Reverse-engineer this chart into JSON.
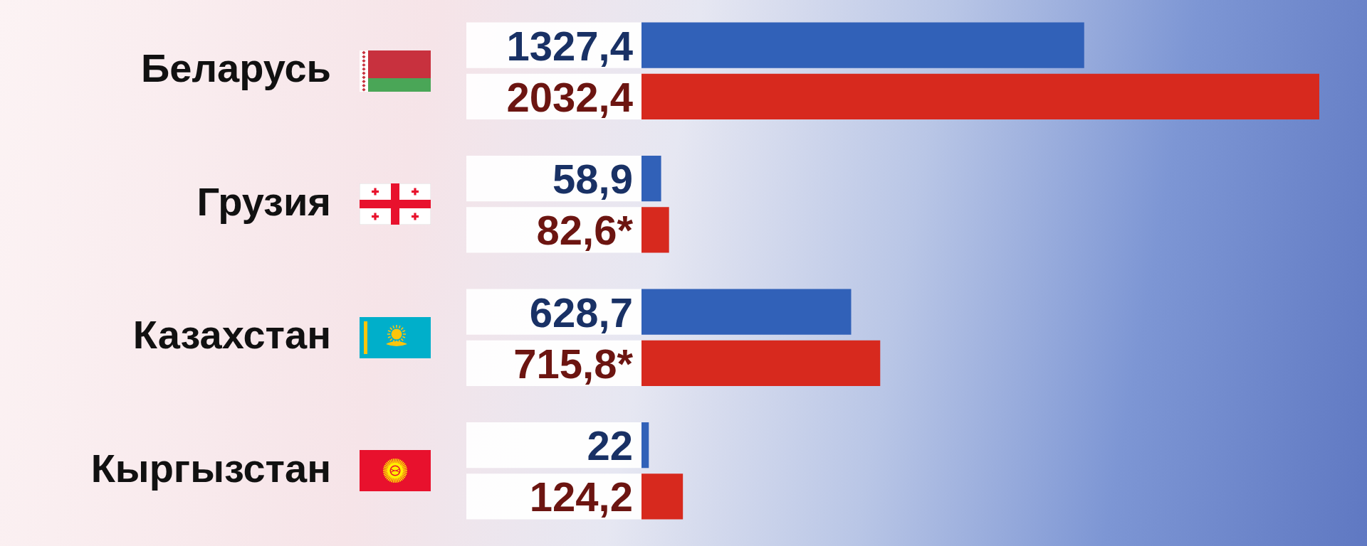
{
  "chart_data": {
    "type": "bar",
    "orientation": "horizontal",
    "tick_labels": "y",
    "categories": [
      "Беларусь",
      "Грузия",
      "Казахстан",
      "Кыргызстан"
    ],
    "series": [
      {
        "color": "#3161b8",
        "values": [
          1327.4,
          58.9,
          628.7,
          22
        ],
        "value_labels": [
          "1327,4",
          "58,9",
          "628,7",
          "22"
        ]
      },
      {
        "color": "#d7291e",
        "values": [
          2032.4,
          82.6,
          715.8,
          124.2
        ],
        "value_labels": [
          "2032,4",
          "82,6*",
          "715,8*",
          "124,2"
        ]
      }
    ]
  }
}
